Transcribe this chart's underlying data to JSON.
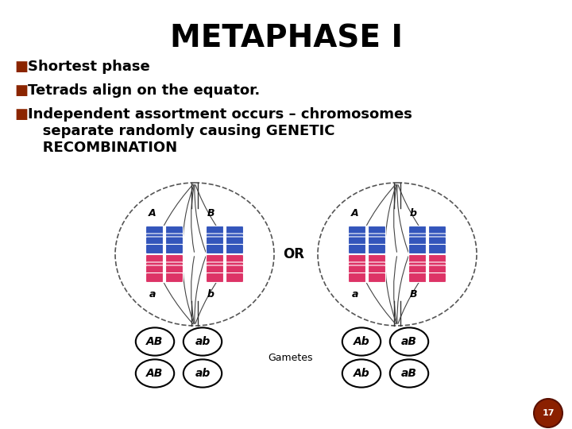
{
  "title": "METAPHASE I",
  "title_fontsize": 28,
  "background_color": "#ffffff",
  "bullet_color": "#8B2500",
  "bullets": [
    "Shortest phase",
    "Tetrads align on the equator.",
    "Independent assortment occurs – chromosomes\n   separate randomly causing GENETIC\n   RECOMBINATION"
  ],
  "bullet_fontsize": 13,
  "blue_color": "#3355BB",
  "pink_color": "#DD3366",
  "or_text": "OR",
  "gametes_text": "Gametes",
  "left_gametes": [
    [
      "AB",
      "ab"
    ],
    [
      "AB",
      "ab"
    ]
  ],
  "right_gametes": [
    [
      "Ab",
      "aB"
    ],
    [
      "Ab",
      "aB"
    ]
  ],
  "footer_dot_color": "#8B2000",
  "footer_number": "17"
}
